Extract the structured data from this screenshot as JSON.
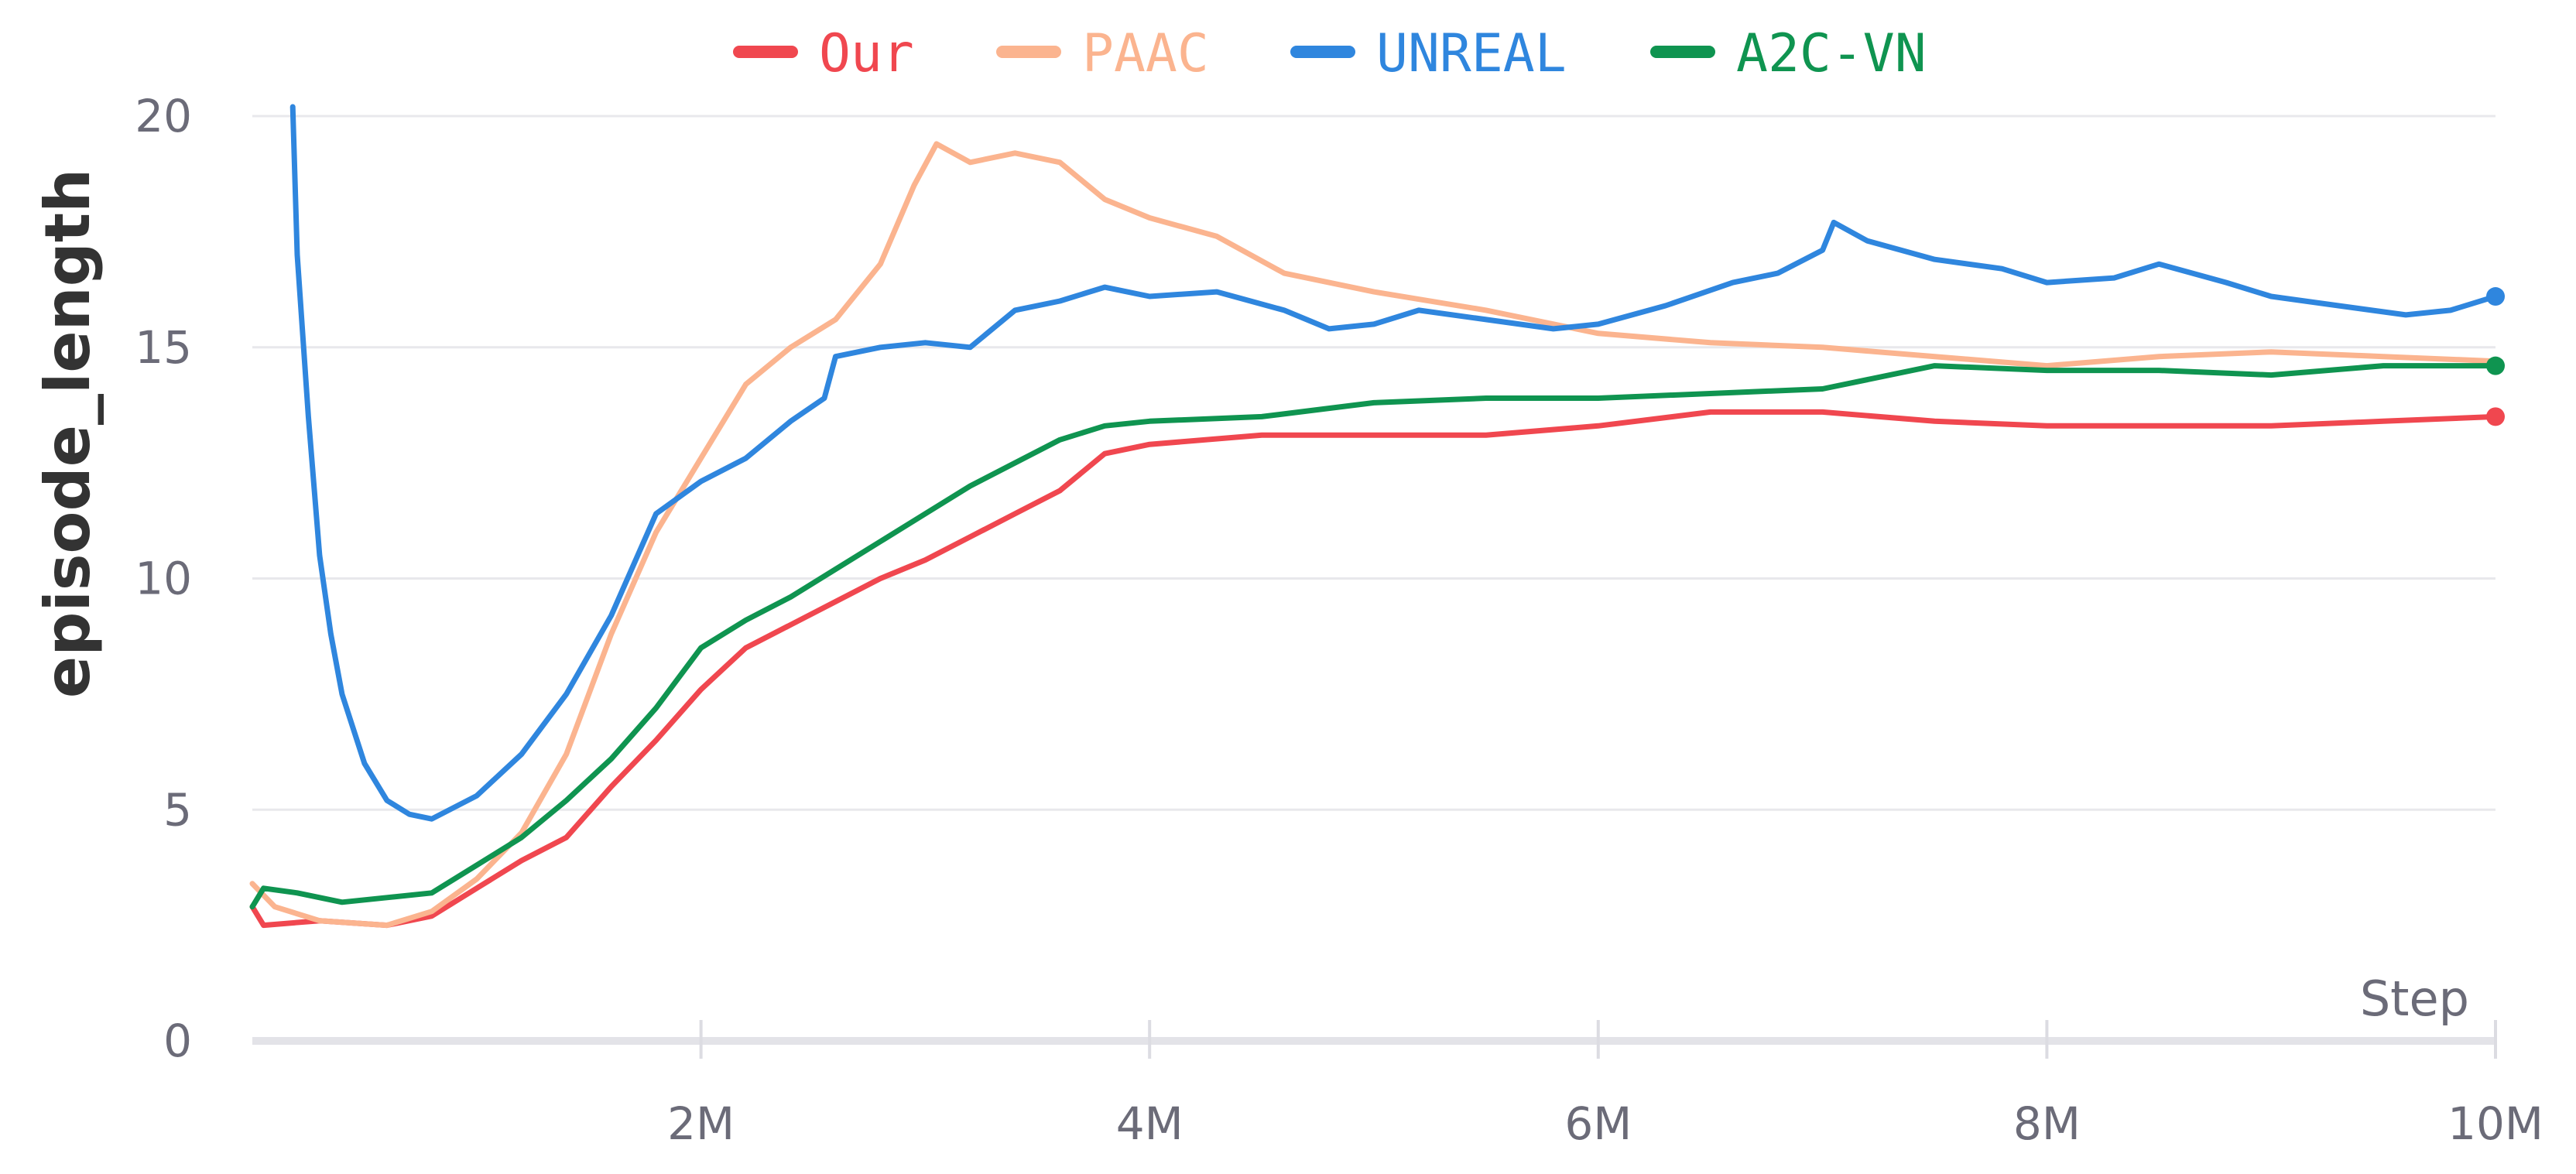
{
  "chart_data": {
    "type": "line",
    "title": "",
    "xlabel": "Step",
    "ylabel": "episode_length",
    "xlim": [
      0,
      10000000
    ],
    "ylim": [
      0,
      20
    ],
    "x_ticks": [
      {
        "value": 2000000,
        "label": "2M"
      },
      {
        "value": 4000000,
        "label": "4M"
      },
      {
        "value": 6000000,
        "label": "6M"
      },
      {
        "value": 8000000,
        "label": "8M"
      },
      {
        "value": 10000000,
        "label": "10M"
      }
    ],
    "y_ticks": [
      {
        "value": 0,
        "label": "0"
      },
      {
        "value": 5,
        "label": "5"
      },
      {
        "value": 10,
        "label": "10"
      },
      {
        "value": 15,
        "label": "15"
      },
      {
        "value": 20,
        "label": "20"
      }
    ],
    "grid": true,
    "legend_position": "top-center",
    "series": [
      {
        "name": "Our",
        "color": "#f0474f",
        "end_marker": true,
        "x": [
          0,
          50000,
          300000,
          600000,
          800000,
          1000000,
          1200000,
          1400000,
          1600000,
          1800000,
          2000000,
          2200000,
          2400000,
          2600000,
          2800000,
          3000000,
          3200000,
          3400000,
          3600000,
          3800000,
          4000000,
          4500000,
          5000000,
          5500000,
          6000000,
          6500000,
          7000000,
          7500000,
          8000000,
          8500000,
          9000000,
          9500000,
          10000000
        ],
        "y": [
          2.9,
          2.5,
          2.6,
          2.5,
          2.7,
          3.3,
          3.9,
          4.4,
          5.5,
          6.5,
          7.6,
          8.5,
          9.0,
          9.5,
          10.0,
          10.4,
          10.9,
          11.4,
          11.9,
          12.7,
          12.9,
          13.1,
          13.1,
          13.1,
          13.3,
          13.6,
          13.6,
          13.4,
          13.3,
          13.3,
          13.3,
          13.4,
          13.5
        ]
      },
      {
        "name": "PAAC",
        "color": "#fbb48f",
        "end_marker": false,
        "x": [
          0,
          100000,
          300000,
          600000,
          800000,
          1000000,
          1200000,
          1400000,
          1600000,
          1800000,
          2000000,
          2200000,
          2400000,
          2600000,
          2800000,
          2950000,
          3050000,
          3200000,
          3400000,
          3600000,
          3800000,
          4000000,
          4300000,
          4600000,
          5000000,
          5500000,
          6000000,
          6500000,
          7000000,
          7500000,
          8000000,
          8500000,
          9000000,
          9500000,
          10000000
        ],
        "y": [
          3.4,
          2.9,
          2.6,
          2.5,
          2.8,
          3.5,
          4.5,
          6.2,
          8.8,
          11.0,
          12.6,
          14.2,
          15.0,
          15.6,
          16.8,
          18.5,
          19.4,
          19.0,
          19.2,
          19.0,
          18.2,
          17.8,
          17.4,
          16.6,
          16.2,
          15.8,
          15.3,
          15.1,
          15.0,
          14.8,
          14.6,
          14.8,
          14.9,
          14.8,
          14.7
        ]
      },
      {
        "name": "UNREAL",
        "color": "#2f86de",
        "end_marker": true,
        "x": [
          180000,
          200000,
          250000,
          300000,
          350000,
          400000,
          500000,
          600000,
          700000,
          800000,
          1000000,
          1200000,
          1400000,
          1600000,
          1800000,
          2000000,
          2200000,
          2400000,
          2550000,
          2600000,
          2800000,
          3000000,
          3200000,
          3400000,
          3600000,
          3800000,
          4000000,
          4300000,
          4600000,
          4800000,
          5000000,
          5200000,
          5500000,
          5800000,
          6000000,
          6300000,
          6600000,
          6800000,
          7000000,
          7050000,
          7200000,
          7500000,
          7800000,
          8000000,
          8300000,
          8500000,
          8800000,
          9000000,
          9300000,
          9600000,
          9800000,
          10000000
        ],
        "y": [
          20.2,
          17.0,
          13.5,
          10.5,
          8.8,
          7.5,
          6.0,
          5.2,
          4.9,
          4.8,
          5.3,
          6.2,
          7.5,
          9.2,
          11.4,
          12.1,
          12.6,
          13.4,
          13.9,
          14.8,
          15.0,
          15.1,
          15.0,
          15.8,
          16.0,
          16.3,
          16.1,
          16.2,
          15.8,
          15.4,
          15.5,
          15.8,
          15.6,
          15.4,
          15.5,
          15.9,
          16.4,
          16.6,
          17.1,
          17.7,
          17.3,
          16.9,
          16.7,
          16.4,
          16.5,
          16.8,
          16.4,
          16.1,
          15.9,
          15.7,
          15.8,
          16.1
        ]
      },
      {
        "name": "A2C-VN",
        "color": "#0f9450",
        "end_marker": true,
        "x": [
          0,
          50000,
          200000,
          400000,
          600000,
          800000,
          1000000,
          1200000,
          1400000,
          1600000,
          1800000,
          2000000,
          2200000,
          2400000,
          2600000,
          2800000,
          3000000,
          3200000,
          3400000,
          3600000,
          3800000,
          4000000,
          4500000,
          5000000,
          5500000,
          6000000,
          6500000,
          7000000,
          7500000,
          8000000,
          8500000,
          9000000,
          9500000,
          10000000
        ],
        "y": [
          2.9,
          3.3,
          3.2,
          3.0,
          3.1,
          3.2,
          3.8,
          4.4,
          5.2,
          6.1,
          7.2,
          8.5,
          9.1,
          9.6,
          10.2,
          10.8,
          11.4,
          12.0,
          12.5,
          13.0,
          13.3,
          13.4,
          13.5,
          13.8,
          13.9,
          13.9,
          14.0,
          14.1,
          14.6,
          14.5,
          14.5,
          14.4,
          14.6,
          14.6
        ]
      }
    ]
  }
}
